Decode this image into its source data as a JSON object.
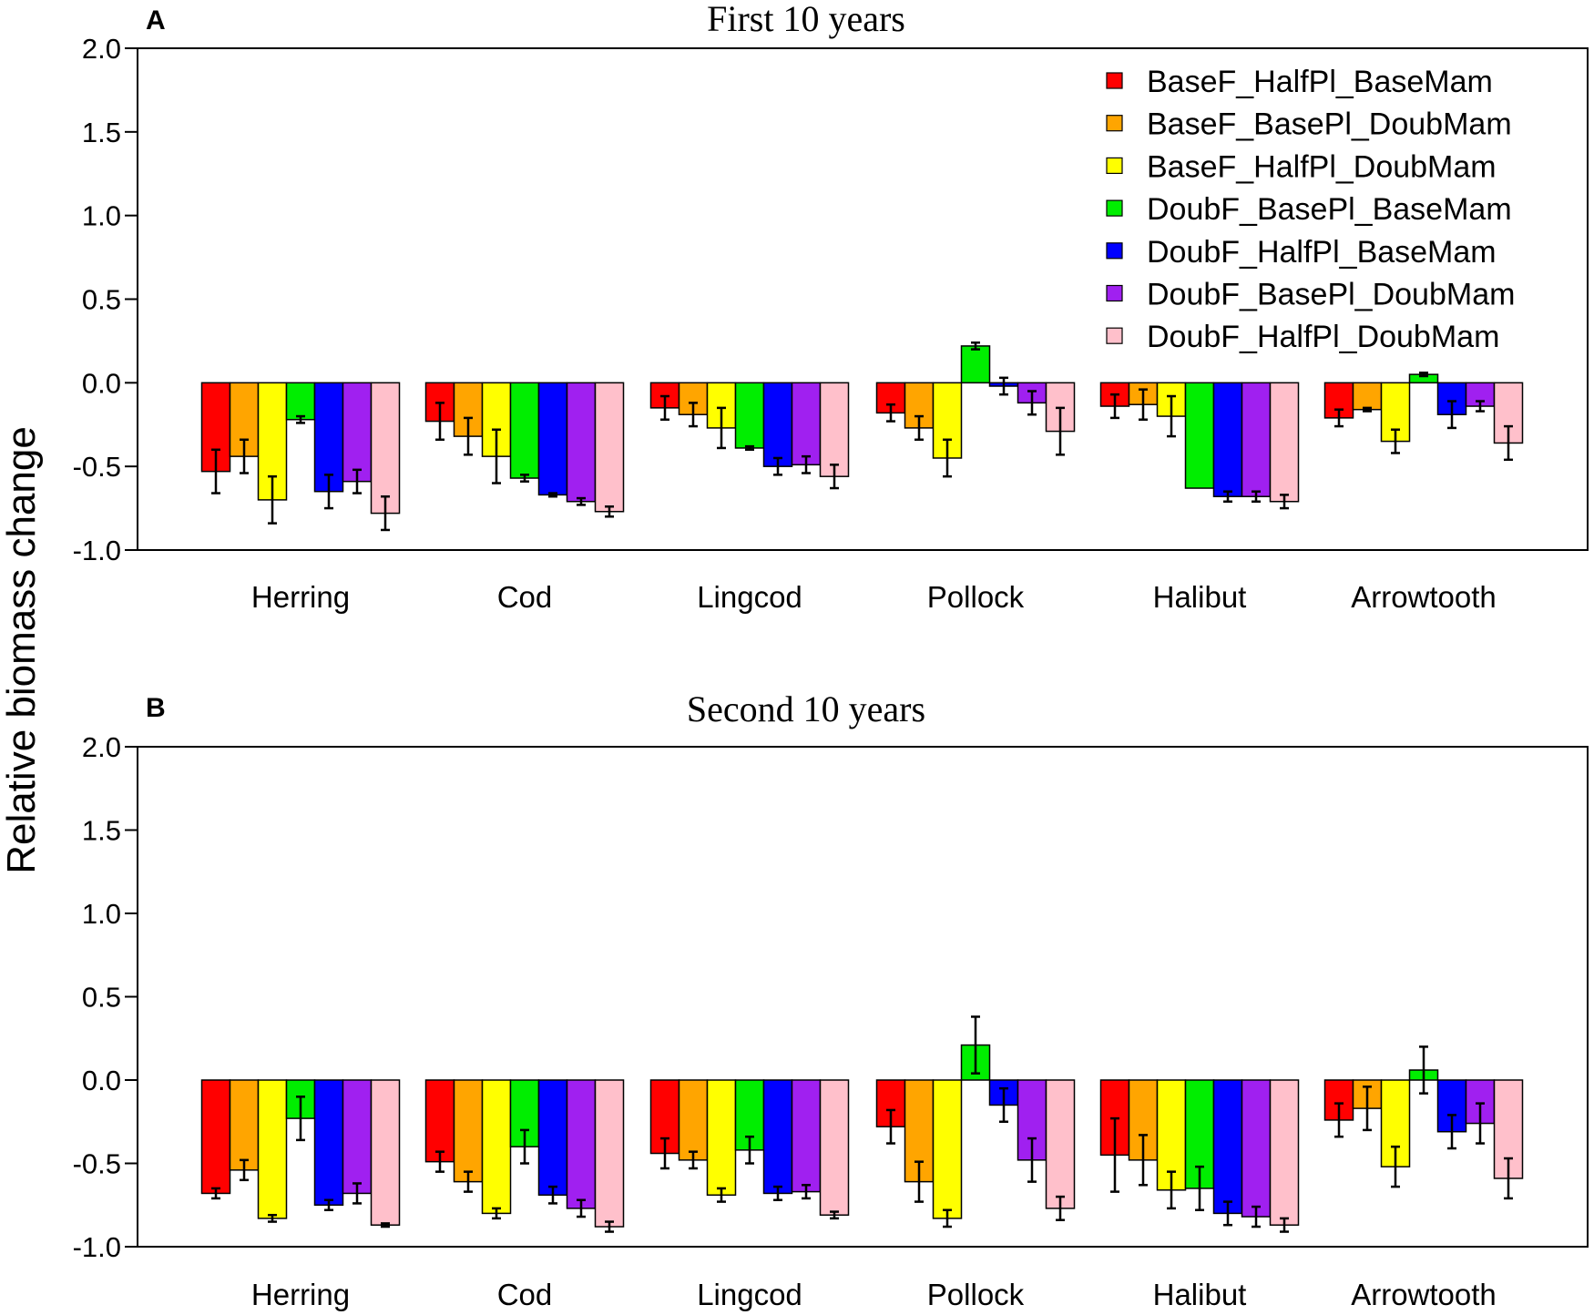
{
  "y_axis_label": "Relative biomass change",
  "legend": {
    "placement": "top-right"
  },
  "chart_data": [
    {
      "type": "bar",
      "panel_letter": "A",
      "title": "First 10 years",
      "xlabel": "",
      "ylabel": "Relative biomass change",
      "ylim": [
        -1.0,
        2.0
      ],
      "yticks": [
        "2.0",
        "1.5",
        "1.0",
        "0.5",
        "0.0",
        "-0.5",
        "-1.0"
      ],
      "ytick_values": [
        2.0,
        1.5,
        1.0,
        0.5,
        0.0,
        -0.5,
        -1.0
      ],
      "categories": [
        "Herring",
        "Cod",
        "Lingcod",
        "Pollock",
        "Halibut",
        "Arrowtooth"
      ],
      "series": [
        {
          "name": "BaseF_HalfPl_BaseMam",
          "color": "#ff0000",
          "values": [
            -0.53,
            -0.23,
            -0.15,
            -0.18,
            -0.14,
            -0.21
          ],
          "errors": [
            0.13,
            0.11,
            0.07,
            0.05,
            0.07,
            0.05
          ]
        },
        {
          "name": "BaseF_BasePl_DoubMam",
          "color": "#ffa500",
          "values": [
            -0.44,
            -0.32,
            -0.19,
            -0.27,
            -0.13,
            -0.16
          ],
          "errors": [
            0.1,
            0.11,
            0.07,
            0.07,
            0.09,
            0.01
          ]
        },
        {
          "name": "BaseF_HalfPl_DoubMam",
          "color": "#ffff00",
          "values": [
            -0.7,
            -0.44,
            -0.27,
            -0.45,
            -0.2,
            -0.35
          ],
          "errors": [
            0.14,
            0.16,
            0.12,
            0.11,
            0.12,
            0.07
          ]
        },
        {
          "name": "DoubF_BasePl_BaseMam",
          "color": "#00ee00",
          "values": [
            -0.22,
            -0.57,
            -0.39,
            0.22,
            -0.63,
            0.05
          ],
          "errors": [
            0.02,
            0.02,
            0.01,
            0.02,
            0.0,
            0.01
          ]
        },
        {
          "name": "DoubF_HalfPl_BaseMam",
          "color": "#0000ff",
          "values": [
            -0.65,
            -0.67,
            -0.5,
            -0.02,
            -0.68,
            -0.19
          ],
          "errors": [
            0.1,
            0.01,
            0.05,
            0.05,
            0.03,
            0.08
          ]
        },
        {
          "name": "DoubF_BasePl_DoubMam",
          "color": "#a020f0",
          "values": [
            -0.59,
            -0.71,
            -0.49,
            -0.12,
            -0.68,
            -0.14
          ],
          "errors": [
            0.07,
            0.02,
            0.05,
            0.07,
            0.03,
            0.03
          ]
        },
        {
          "name": "DoubF_HalfPl_DoubMam",
          "color": "#ffc0cb",
          "values": [
            -0.78,
            -0.77,
            -0.56,
            -0.29,
            -0.71,
            -0.36
          ],
          "errors": [
            0.1,
            0.03,
            0.07,
            0.14,
            0.04,
            0.1
          ]
        }
      ]
    },
    {
      "type": "bar",
      "panel_letter": "B",
      "title": "Second 10 years",
      "xlabel": "",
      "ylabel": "Relative biomass change",
      "ylim": [
        -1.0,
        2.0
      ],
      "yticks": [
        "2.0",
        "1.5",
        "1.0",
        "0.5",
        "0.0",
        "-0.5",
        "-1.0"
      ],
      "ytick_values": [
        2.0,
        1.5,
        1.0,
        0.5,
        0.0,
        -0.5,
        -1.0
      ],
      "categories": [
        "Herring",
        "Cod",
        "Lingcod",
        "Pollock",
        "Halibut",
        "Arrowtooth"
      ],
      "series": [
        {
          "name": "BaseF_HalfPl_BaseMam",
          "color": "#ff0000",
          "values": [
            -0.68,
            -0.49,
            -0.44,
            -0.28,
            -0.45,
            -0.24
          ],
          "errors": [
            0.03,
            0.06,
            0.09,
            0.1,
            0.22,
            0.1
          ]
        },
        {
          "name": "BaseF_BasePl_DoubMam",
          "color": "#ffa500",
          "values": [
            -0.54,
            -0.61,
            -0.48,
            -0.61,
            -0.48,
            -0.17
          ],
          "errors": [
            0.06,
            0.06,
            0.05,
            0.12,
            0.15,
            0.13
          ]
        },
        {
          "name": "BaseF_HalfPl_DoubMam",
          "color": "#ffff00",
          "values": [
            -0.83,
            -0.8,
            -0.69,
            -0.83,
            -0.66,
            -0.52
          ],
          "errors": [
            0.02,
            0.03,
            0.04,
            0.05,
            0.11,
            0.12
          ]
        },
        {
          "name": "DoubF_BasePl_BaseMam",
          "color": "#00ee00",
          "values": [
            -0.23,
            -0.4,
            -0.42,
            0.21,
            -0.65,
            0.06
          ],
          "errors": [
            0.13,
            0.1,
            0.08,
            0.17,
            0.13,
            0.14
          ]
        },
        {
          "name": "DoubF_HalfPl_BaseMam",
          "color": "#0000ff",
          "values": [
            -0.75,
            -0.69,
            -0.68,
            -0.15,
            -0.8,
            -0.31
          ],
          "errors": [
            0.03,
            0.05,
            0.04,
            0.1,
            0.07,
            0.1
          ]
        },
        {
          "name": "DoubF_BasePl_DoubMam",
          "color": "#a020f0",
          "values": [
            -0.68,
            -0.77,
            -0.67,
            -0.48,
            -0.82,
            -0.26
          ],
          "errors": [
            0.06,
            0.05,
            0.04,
            0.13,
            0.06,
            0.12
          ]
        },
        {
          "name": "DoubF_HalfPl_DoubMam",
          "color": "#ffc0cb",
          "values": [
            -0.87,
            -0.88,
            -0.81,
            -0.77,
            -0.87,
            -0.59
          ],
          "errors": [
            0.01,
            0.03,
            0.02,
            0.07,
            0.04,
            0.12
          ]
        }
      ]
    }
  ]
}
